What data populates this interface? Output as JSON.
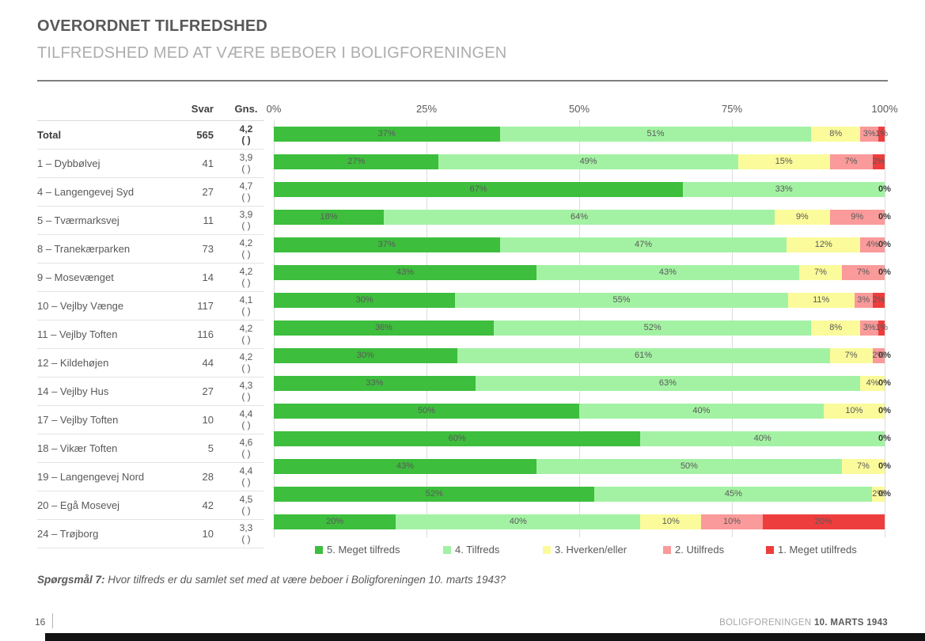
{
  "header": {
    "title": "OVERORDNET TILFREDSHED",
    "subtitle": "TILFREDSHED MED AT VÆRE BEBOER I BOLIGFORENINGEN"
  },
  "table": {
    "col_svar": "Svar",
    "col_gns": "Gns."
  },
  "chart_data": {
    "type": "bar",
    "stacked": true,
    "orientation": "horizontal",
    "xlim": [
      0,
      100
    ],
    "grid": true,
    "axis_ticks": [
      "0%",
      "25%",
      "50%",
      "75%",
      "100%"
    ],
    "legend_position": "bottom",
    "legend": [
      {
        "label": "5. Meget tilfreds",
        "color": "#3dbe3d"
      },
      {
        "label": "4. Tilfreds",
        "color": "#a3f2a3"
      },
      {
        "label": "3. Hverken/eller",
        "color": "#fbfb9b"
      },
      {
        "label": "2. Utilfreds",
        "color": "#fa9a9a"
      },
      {
        "label": "1. Meget utilfreds",
        "color": "#ee3d3d"
      }
    ],
    "rows": [
      {
        "label": "Total",
        "svar": "565",
        "gns": "4,2",
        "gns_note": "( )",
        "bold": true,
        "values": [
          37,
          51,
          8,
          3,
          1
        ]
      },
      {
        "label": "1 – Dybbølvej",
        "svar": "41",
        "gns": "3,9",
        "gns_note": "( )",
        "bold": false,
        "values": [
          27,
          49,
          15,
          7,
          2
        ]
      },
      {
        "label": "4 – Langengevej Syd",
        "svar": "27",
        "gns": "4,7",
        "gns_note": "( )",
        "bold": false,
        "values": [
          67,
          33,
          0,
          0,
          0
        ]
      },
      {
        "label": "5 – Tværmarksvej",
        "svar": "11",
        "gns": "3,9",
        "gns_note": "( )",
        "bold": false,
        "values": [
          18,
          64,
          9,
          9,
          0
        ]
      },
      {
        "label": "8 – Tranekærparken",
        "svar": "73",
        "gns": "4,2",
        "gns_note": "( )",
        "bold": false,
        "values": [
          37,
          47,
          12,
          4,
          0
        ]
      },
      {
        "label": "9 – Mosevænget",
        "svar": "14",
        "gns": "4,2",
        "gns_note": "( )",
        "bold": false,
        "values": [
          43,
          43,
          7,
          7,
          0
        ]
      },
      {
        "label": "10 – Vejlby Vænge",
        "svar": "117",
        "gns": "4,1",
        "gns_note": "( )",
        "bold": false,
        "values": [
          30,
          55,
          11,
          3,
          2
        ]
      },
      {
        "label": "11 – Vejlby Toften",
        "svar": "116",
        "gns": "4,2",
        "gns_note": "( )",
        "bold": false,
        "values": [
          36,
          52,
          8,
          3,
          1
        ]
      },
      {
        "label": "12 – Kildehøjen",
        "svar": "44",
        "gns": "4,2",
        "gns_note": "( )",
        "bold": false,
        "values": [
          30,
          61,
          7,
          2,
          0
        ]
      },
      {
        "label": "14 – Vejlby Hus",
        "svar": "27",
        "gns": "4,3",
        "gns_note": "( )",
        "bold": false,
        "values": [
          33,
          63,
          4,
          0,
          0
        ]
      },
      {
        "label": "17 – Vejlby Toften",
        "svar": "10",
        "gns": "4,4",
        "gns_note": "( )",
        "bold": false,
        "values": [
          50,
          40,
          10,
          0,
          0
        ]
      },
      {
        "label": "18 – Vikær Toften",
        "svar": "5",
        "gns": "4,6",
        "gns_note": "( )",
        "bold": false,
        "values": [
          60,
          40,
          0,
          0,
          0
        ]
      },
      {
        "label": "19 – Langengevej Nord",
        "svar": "28",
        "gns": "4,4",
        "gns_note": "( )",
        "bold": false,
        "values": [
          43,
          50,
          7,
          0,
          0
        ]
      },
      {
        "label": "20 – Egå Mosevej",
        "svar": "42",
        "gns": "4,5",
        "gns_note": "( )",
        "bold": false,
        "values": [
          52,
          45,
          2,
          0,
          0
        ]
      },
      {
        "label": "24 – Trøjborg",
        "svar": "10",
        "gns": "3,3",
        "gns_note": "( )",
        "bold": false,
        "values": [
          20,
          40,
          10,
          10,
          20
        ]
      }
    ]
  },
  "footnote": {
    "bold": "Spørgsmål 7:",
    "text": " Hvor tilfreds er du samlet set med at være beboer i Boligforeningen 10. marts 1943?"
  },
  "footer": {
    "page": "16",
    "org": "BOLIGFORENINGEN ",
    "date": "10. MARTS 1943"
  }
}
